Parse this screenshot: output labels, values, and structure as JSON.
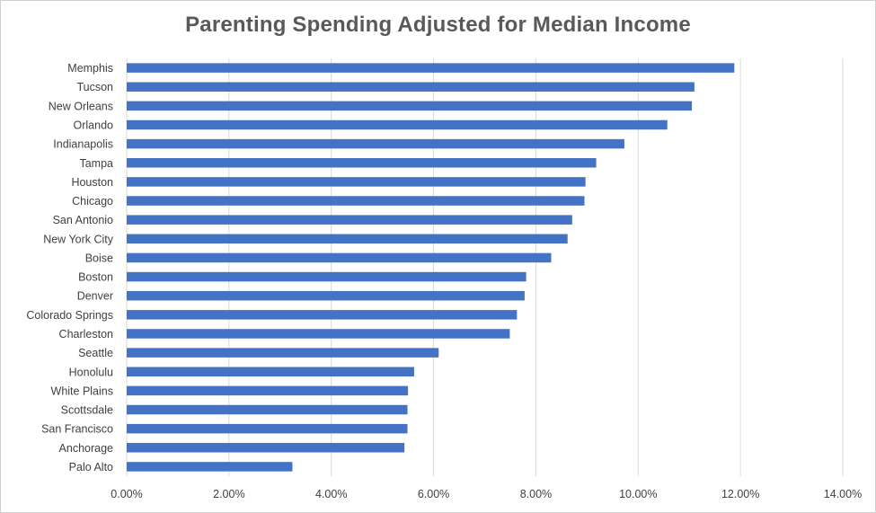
{
  "chart_data": {
    "type": "bar",
    "orientation": "horizontal",
    "title": "Parenting Spending Adjusted for Median Income",
    "xlabel": "",
    "ylabel": "",
    "categories": [
      "Memphis",
      "Tucson",
      "New Orleans",
      "Orlando",
      "Indianapolis",
      "Tampa",
      "Houston",
      "Chicago",
      "San Antonio",
      "New York City",
      "Boise",
      "Boston",
      "Denver",
      "Colorado Springs",
      "Charleston",
      "Seattle",
      "Honolulu",
      "White Plains",
      "Scottsdale",
      "San Francisco",
      "Anchorage",
      "Palo Alto"
    ],
    "values": [
      11.88,
      11.1,
      11.05,
      10.57,
      9.73,
      9.18,
      8.97,
      8.95,
      8.71,
      8.62,
      8.3,
      7.81,
      7.78,
      7.63,
      7.49,
      6.1,
      5.62,
      5.5,
      5.49,
      5.49,
      5.43,
      3.24
    ],
    "xlim": [
      0,
      14
    ],
    "xticks": [
      "0.00%",
      "2.00%",
      "4.00%",
      "6.00%",
      "8.00%",
      "10.00%",
      "12.00%",
      "14.00%"
    ],
    "grid": true,
    "bar_color": "#4472C4",
    "grid_color": "#d9d9d9"
  }
}
